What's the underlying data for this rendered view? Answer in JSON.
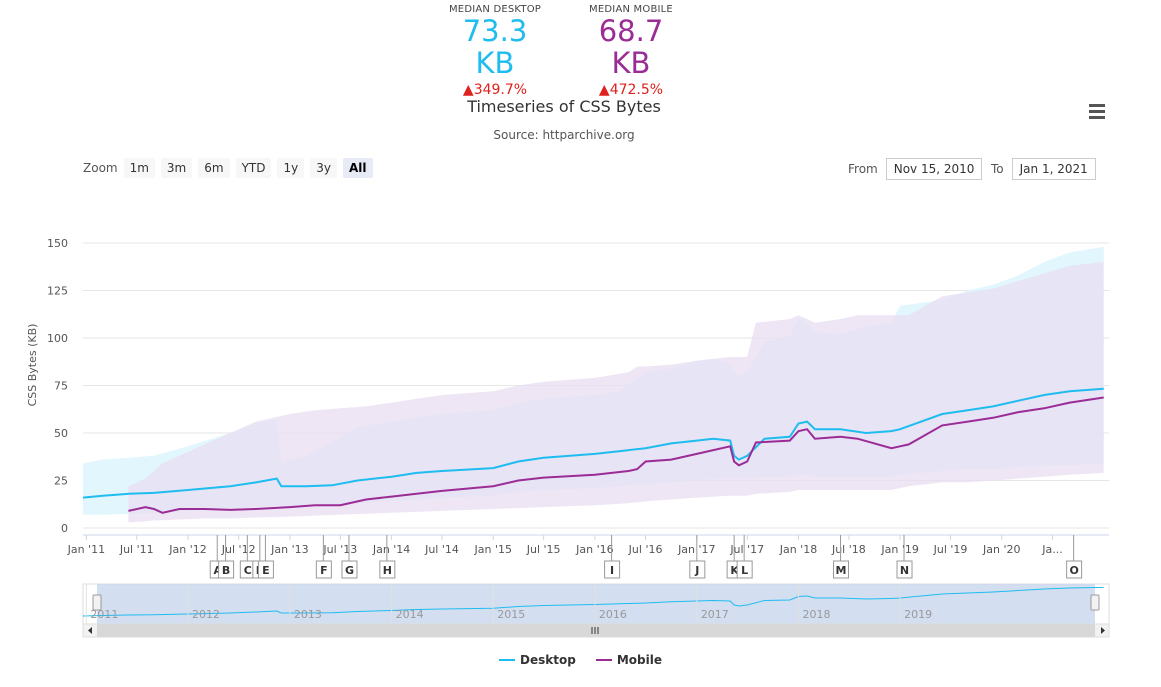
{
  "stats": {
    "desktop": {
      "label": "MEDIAN DESKTOP",
      "value": "73.3 KB",
      "change": "▲349.7%",
      "color": "#1fbcf0"
    },
    "mobile": {
      "label": "MEDIAN MOBILE",
      "value": "68.7 KB",
      "change": "▲472.5%",
      "color": "#9b2c96"
    }
  },
  "toolbar": {
    "zoom_label": "Zoom",
    "zoom_buttons": [
      "1m",
      "3m",
      "6m",
      "YTD",
      "1y",
      "3y",
      "All"
    ],
    "zoom_active": "All",
    "from_label": "From",
    "from_value": "Nov 15, 2010",
    "to_label": "To",
    "to_value": "Jan 1, 2021",
    "menu_icon": "hamburger-menu-icon"
  },
  "chart_data": {
    "type": "area",
    "title": "Timeseries of CSS Bytes",
    "subtitle": "Source: httparchive.org",
    "ylabel": "CSS Bytes (KB)",
    "ylim": [
      0,
      150
    ],
    "yticks": [
      0,
      25,
      50,
      75,
      100,
      125,
      150
    ],
    "xlim": [
      "2010-12-20",
      "2021-01-20"
    ],
    "xticks": [
      "2011-01-01",
      "2011-07-01",
      "2012-01-01",
      "2012-07-01",
      "2013-01-01",
      "2013-07-01",
      "2014-01-01",
      "2014-07-01",
      "2015-01-01",
      "2015-07-01",
      "2016-01-01",
      "2016-07-01",
      "2017-01-01",
      "2017-07-01",
      "2018-01-01",
      "2018-07-01",
      "2019-01-01",
      "2019-07-01",
      "2020-01-01",
      "2020-07-01"
    ],
    "xtick_labels": [
      "Jan '11",
      "Jul '11",
      "Jan '12",
      "Jul '12",
      "Jan '13",
      "Jul '13",
      "Jan '14",
      "Jul '14",
      "Jan '15",
      "Jul '15",
      "Jan '16",
      "Jul '16",
      "Jan '17",
      "Jul '17",
      "Jan '18",
      "Jul '18",
      "Jan '19",
      "Jul '19",
      "Jan '20",
      "Ja..."
    ],
    "grid": true,
    "legend_position": "bottom",
    "series": [
      {
        "name": "Desktop",
        "color": "#1fbcf0",
        "x": [
          "2010-12-20",
          "2011-03-01",
          "2011-06-01",
          "2011-09-01",
          "2012-01-01",
          "2012-06-01",
          "2012-09-01",
          "2012-11-15",
          "2012-12-01",
          "2013-03-01",
          "2013-06-01",
          "2013-09-01",
          "2014-01-01",
          "2014-04-01",
          "2014-07-01",
          "2015-01-01",
          "2015-04-01",
          "2015-07-01",
          "2016-01-01",
          "2016-04-01",
          "2016-07-01",
          "2016-10-01",
          "2017-01-01",
          "2017-03-01",
          "2017-05-01",
          "2017-05-15",
          "2017-06-01",
          "2017-07-01",
          "2017-09-01",
          "2017-12-01",
          "2018-01-01",
          "2018-02-01",
          "2018-03-01",
          "2018-06-01",
          "2018-09-01",
          "2018-12-01",
          "2019-01-01",
          "2019-06-01",
          "2019-09-01",
          "2019-12-01",
          "2020-03-01",
          "2020-06-01",
          "2020-09-01",
          "2021-01-01"
        ],
        "values": [
          16,
          17,
          18,
          18.5,
          20,
          22,
          24,
          26,
          22,
          22,
          22.5,
          25,
          27,
          29,
          30,
          31.5,
          35,
          37,
          39,
          40.5,
          42,
          44.5,
          46,
          47,
          46,
          38,
          36,
          38,
          47,
          48,
          55,
          56,
          52,
          52,
          50,
          51,
          52,
          60,
          62,
          64,
          67,
          70,
          72,
          73.3
        ],
        "upper": [
          34,
          36,
          37,
          38,
          43,
          50,
          55,
          57,
          35,
          38,
          45,
          53,
          56,
          58,
          60,
          62,
          66,
          68,
          70,
          72,
          82,
          84,
          88,
          89,
          86,
          82,
          80,
          82,
          98,
          101,
          110,
          108,
          103,
          102,
          106,
          108,
          117,
          120,
          125,
          128,
          133,
          140,
          145,
          148
        ],
        "lower": [
          7,
          7,
          7.5,
          8,
          9,
          10,
          11,
          12,
          11,
          11.5,
          12,
          13,
          14,
          15,
          16,
          17,
          19,
          20,
          21,
          22,
          23,
          24,
          25,
          26,
          26,
          26,
          26,
          26,
          27,
          27,
          28,
          28,
          27,
          27,
          27,
          27,
          28,
          30,
          31,
          31,
          32,
          33,
          33,
          34
        ]
      },
      {
        "name": "Mobile",
        "color": "#9b2c96",
        "x": [
          "2011-06-01",
          "2011-08-01",
          "2011-09-01",
          "2011-10-01",
          "2011-12-01",
          "2012-03-01",
          "2012-06-01",
          "2012-09-01",
          "2013-01-01",
          "2013-04-01",
          "2013-07-01",
          "2013-10-01",
          "2014-01-01",
          "2014-04-01",
          "2014-07-01",
          "2015-01-01",
          "2015-04-01",
          "2015-07-01",
          "2016-01-01",
          "2016-05-01",
          "2016-06-01",
          "2016-07-01",
          "2016-10-01",
          "2017-01-01",
          "2017-05-01",
          "2017-05-15",
          "2017-06-01",
          "2017-07-01",
          "2017-08-01",
          "2017-12-01",
          "2018-01-01",
          "2018-02-01",
          "2018-03-01",
          "2018-06-01",
          "2018-08-01",
          "2018-12-01",
          "2019-01-01",
          "2019-02-01",
          "2019-06-01",
          "2019-09-01",
          "2019-12-01",
          "2020-03-01",
          "2020-06-01",
          "2020-09-01",
          "2021-01-01"
        ],
        "values": [
          9,
          11,
          10,
          8,
          10,
          10,
          9.5,
          10,
          11,
          12,
          12,
          15,
          16.5,
          18,
          19.5,
          22,
          25,
          26.5,
          28,
          30,
          31,
          35,
          36,
          39,
          43,
          35,
          33,
          35,
          45,
          46,
          51,
          52,
          47,
          48,
          47,
          42,
          43,
          44,
          54,
          56,
          58,
          61,
          63,
          66,
          68.7
        ],
        "upper": [
          22,
          26,
          30,
          34,
          38,
          44,
          50,
          56,
          60,
          62,
          63,
          64,
          66,
          68,
          70,
          72,
          75,
          77,
          79,
          82,
          85,
          85,
          86,
          88,
          90,
          90,
          90,
          90,
          108,
          110,
          112,
          110,
          108,
          110,
          112,
          112,
          112,
          112,
          122,
          124,
          126,
          130,
          134,
          138,
          140
        ],
        "lower": [
          3,
          3.5,
          4,
          4,
          4.5,
          5,
          5,
          5.5,
          6,
          6.5,
          7,
          7.5,
          8,
          8.5,
          9,
          10,
          10.5,
          11,
          12,
          13,
          13.5,
          14,
          15,
          16,
          17,
          17,
          17,
          17,
          18,
          19,
          20,
          20,
          20,
          20,
          20,
          20,
          21,
          22,
          24,
          24,
          25,
          26,
          27,
          28,
          29
        ]
      }
    ],
    "flags": [
      {
        "label": "A",
        "date": "2012-04-15"
      },
      {
        "label": "B",
        "date": "2012-05-15"
      },
      {
        "label": "C",
        "date": "2012-08-01"
      },
      {
        "label": "D",
        "date": "2012-09-15"
      },
      {
        "label": "E",
        "date": "2012-10-05"
      },
      {
        "label": "F",
        "date": "2013-05-01"
      },
      {
        "label": "G",
        "date": "2013-08-01"
      },
      {
        "label": "H",
        "date": "2013-12-15"
      },
      {
        "label": "I",
        "date": "2016-03-01"
      },
      {
        "label": "J",
        "date": "2017-01-01"
      },
      {
        "label": "K",
        "date": "2017-05-15"
      },
      {
        "label": "L",
        "date": "2017-06-20"
      },
      {
        "label": "M",
        "date": "2018-06-01"
      },
      {
        "label": "N",
        "date": "2019-01-15"
      },
      {
        "label": "O",
        "date": "2020-09-15"
      }
    ],
    "navigator_labels": [
      "2011",
      "2012",
      "2013",
      "2014",
      "2015",
      "2016",
      "2017",
      "2018",
      "2019"
    ]
  }
}
